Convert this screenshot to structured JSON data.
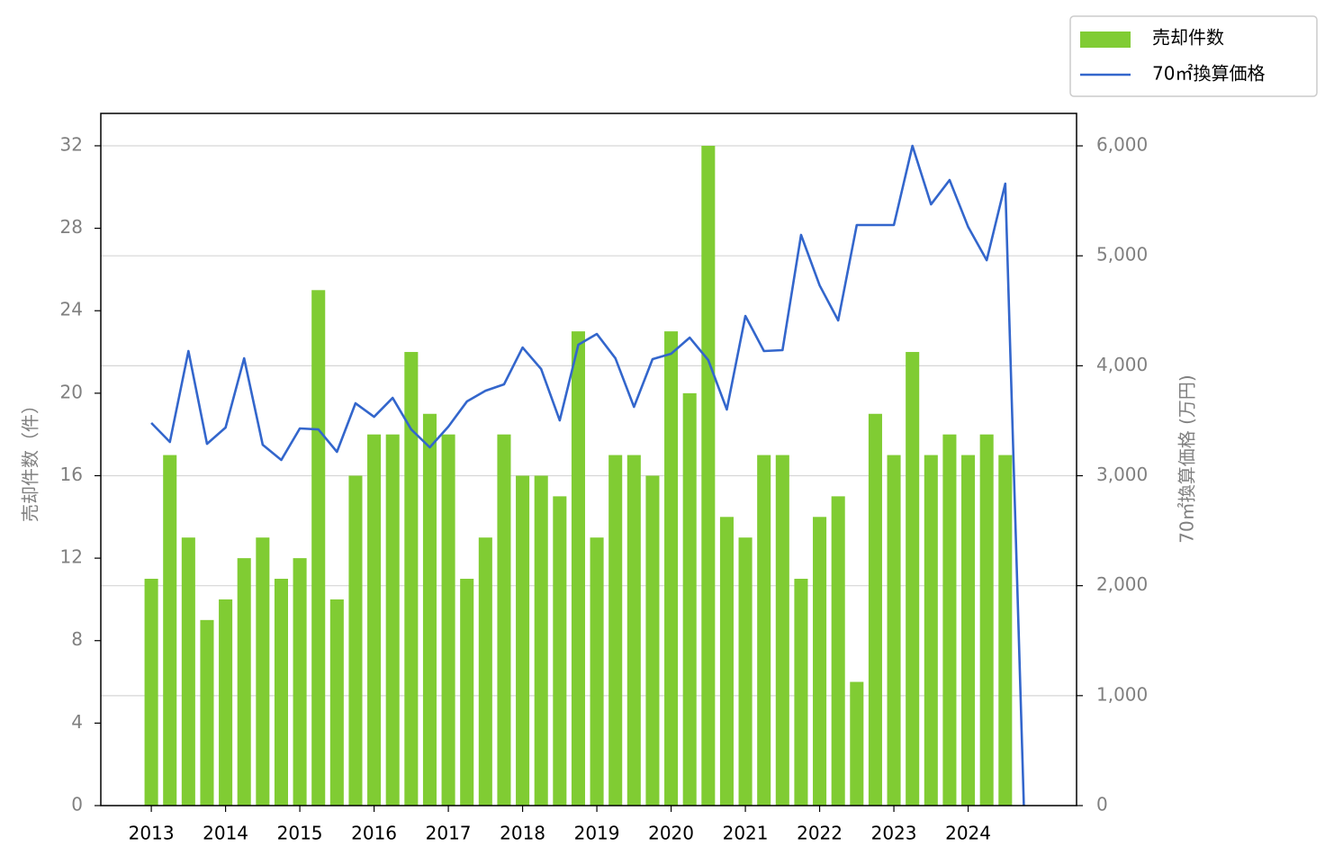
{
  "chart_data": {
    "type": "bar+line",
    "x": [
      2013,
      2013.25,
      2013.5,
      2013.75,
      2014,
      2014.25,
      2014.5,
      2014.75,
      2015,
      2015.25,
      2015.5,
      2015.75,
      2016,
      2016.25,
      2016.5,
      2016.75,
      2017,
      2017.25,
      2017.5,
      2017.75,
      2018,
      2018.25,
      2018.5,
      2018.75,
      2019,
      2019.25,
      2019.5,
      2019.75,
      2020,
      2020.25,
      2020.5,
      2020.75,
      2021,
      2021.25,
      2021.5,
      2021.75,
      2022,
      2022.25,
      2022.5,
      2022.75,
      2023,
      2023.25,
      2023.5,
      2023.75,
      2024,
      2024.25,
      2024.5,
      2024.75
    ],
    "series": [
      {
        "name": "売却件数",
        "type": "bar",
        "color": "#80cc33",
        "values": [
          11,
          17,
          13,
          9,
          10,
          12,
          13,
          11,
          12,
          25,
          10,
          16,
          18,
          18,
          22,
          19,
          18,
          11,
          13,
          18,
          16,
          16,
          15,
          23,
          13,
          17,
          17,
          16,
          23,
          20,
          32,
          14,
          13,
          17,
          17,
          11,
          14,
          15,
          6,
          19,
          17,
          22,
          17,
          18,
          17,
          18,
          17,
          null
        ]
      },
      {
        "name": "70㎡換算価格",
        "type": "line",
        "axis": "y2",
        "color": "#3366cc",
        "values": [
          3480,
          3307,
          4134,
          3290,
          3438,
          4068,
          3282,
          3143,
          3430,
          3421,
          3217,
          3659,
          3536,
          3708,
          3421,
          3258,
          3446,
          3675,
          3773,
          3831,
          4166,
          3970,
          3503,
          4191,
          4289,
          4068,
          3626,
          4060,
          4109,
          4256,
          4052,
          3602,
          4453,
          4134,
          4142,
          5190,
          4731,
          4412,
          5280,
          5280,
          5280,
          6000,
          5468,
          5689,
          5263,
          4960,
          5656,
          0
        ]
      }
    ],
    "xlim": [
      2012.32,
      2025.46
    ],
    "xticks": [
      2013,
      2014,
      2015,
      2016,
      2017,
      2018,
      2019,
      2020,
      2021,
      2022,
      2023,
      2024
    ],
    "ylim": [
      0,
      33.57
    ],
    "yticks": [
      0,
      4,
      8,
      12,
      16,
      20,
      24,
      28,
      32
    ],
    "y2lim": [
      0,
      6295
    ],
    "y2ticks": [
      0,
      {
        "value": 1000,
        "label": "1,000"
      },
      {
        "value": 2000,
        "label": "2,000"
      },
      {
        "value": 3000,
        "label": "3,000"
      },
      {
        "value": 4000,
        "label": "4,000"
      },
      {
        "value": 5000,
        "label": "5,000"
      },
      {
        "value": 6000,
        "label": "6,000"
      }
    ],
    "y_label": "売却件数（件）",
    "y2_label": "70㎡換算価格 (万円)",
    "grid": true,
    "legend": "outside-upper-right"
  }
}
